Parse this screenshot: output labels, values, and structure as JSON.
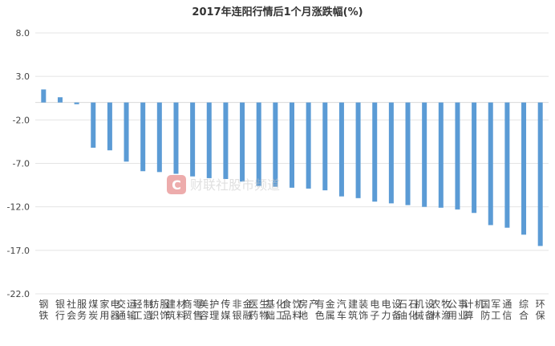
{
  "chart_data": {
    "type": "bar",
    "title": "2017年连阳行情后1个月涨跌幅(%)",
    "xlabel": "",
    "ylabel": "",
    "ylim": [
      -22,
      8
    ],
    "yticks": [
      8.0,
      3.0,
      -2.0,
      -7.0,
      -12.0,
      -17.0,
      -22.0
    ],
    "ytick_labels": [
      "8.0",
      "3.0",
      "-2.0",
      "-7.0",
      "-12.0",
      "-17.0",
      "-22.0"
    ],
    "grid": true,
    "bar_color": "#5b9bd5",
    "categories": [
      "钢铁",
      "银行",
      "社会服务",
      "煤炭",
      "家用电器",
      "交通运输",
      "轻工制造",
      "纺织服饰",
      "建筑材料",
      "商贸零售",
      "美容护理",
      "传媒",
      "非银金融",
      "医药生物",
      "基础化工",
      "食品饮料",
      "房地产",
      "有色金属",
      "汽车",
      "建筑装饰",
      "电子",
      "电力设备",
      "石油石化",
      "机械设备",
      "农林牧渔",
      "公用事业",
      "计算机",
      "国防军工",
      "通信",
      "综合",
      "环保"
    ],
    "values": [
      1.5,
      0.6,
      -0.2,
      -5.2,
      -5.5,
      -6.8,
      -7.9,
      -8.0,
      -8.2,
      -8.5,
      -8.7,
      -8.8,
      -9.1,
      -9.6,
      -9.7,
      -9.8,
      -9.9,
      -10.1,
      -10.8,
      -11.0,
      -11.4,
      -11.6,
      -11.8,
      -12.0,
      -12.1,
      -12.3,
      -12.7,
      -14.1,
      -14.4,
      -15.2,
      -16.5
    ]
  },
  "watermark": {
    "logo_letter": "C",
    "text": "财联社股市频道",
    "color": "#e06a6a"
  }
}
